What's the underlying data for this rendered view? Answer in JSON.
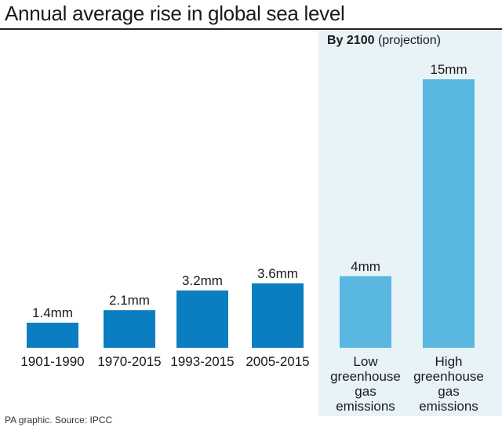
{
  "title": "Annual average rise in global sea level",
  "panel": {
    "bold": "By 2100",
    "rest": "(projection)"
  },
  "source": "PA graphic. Source: IPCC",
  "colors": {
    "historical": "#0a7ec0",
    "projection": "#5ab8e0",
    "panel_bg": "#e8f3f8"
  },
  "chart_data": {
    "type": "bar",
    "title": "Annual average rise in global sea level",
    "unit": "mm",
    "categories": [
      [
        "1901-1990"
      ],
      [
        "1970-2015"
      ],
      [
        "1993-2015"
      ],
      [
        "2005-2015"
      ],
      [
        "Low",
        "greenhouse",
        "gas",
        "emissions"
      ],
      [
        "High",
        "greenhouse",
        "gas",
        "emissions"
      ]
    ],
    "values": [
      1.4,
      2.1,
      3.2,
      3.6,
      4,
      15
    ],
    "labels": [
      "1.4mm",
      "2.1mm",
      "3.2mm",
      "3.6mm",
      "4mm",
      "15mm"
    ],
    "group": [
      "historical",
      "historical",
      "historical",
      "historical",
      "projection",
      "projection"
    ],
    "ylim": [
      0,
      15
    ],
    "grid": false,
    "xlabel": "",
    "ylabel": ""
  }
}
